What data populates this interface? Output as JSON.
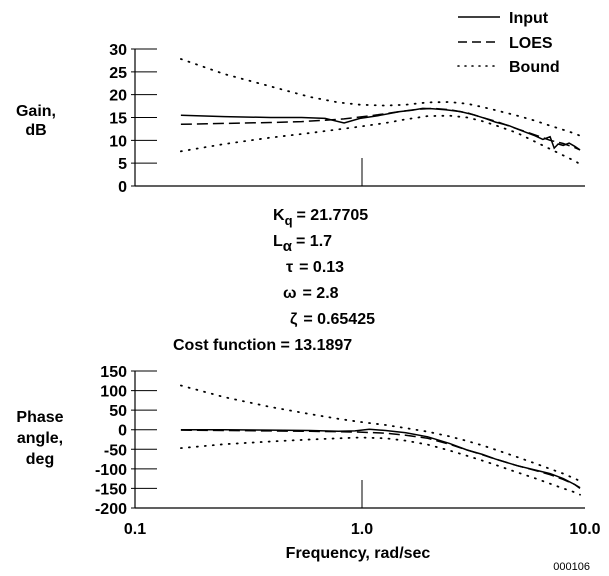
{
  "chart_data": [
    {
      "type": "line",
      "title": "",
      "xlabel": "Frequency, rad/sec",
      "ylabel_lines": [
        "Gain,",
        "dB"
      ],
      "xscale": "log",
      "xlim": [
        0.1,
        10.0
      ],
      "ylim": [
        0,
        30
      ],
      "yticks": [
        "0",
        "5",
        "10",
        "15",
        "20",
        "25",
        "30"
      ],
      "legend": {
        "position": "top-right",
        "entries": [
          "Input",
          "LOES",
          "Bound"
        ]
      },
      "series": [
        {
          "name": "Input",
          "style": "solid",
          "x": [
            0.16,
            0.25,
            0.4,
            0.55,
            0.7,
            0.85,
            1.0,
            1.2,
            1.5,
            1.7,
            1.9,
            2.1,
            2.4,
            2.8,
            3.2,
            3.6,
            4.0,
            4.6,
            5.3,
            6.0,
            6.5,
            7.0,
            7.3,
            7.6,
            8.0,
            8.5,
            9.0,
            9.5
          ],
          "y": [
            15.5,
            15.2,
            15.0,
            15.0,
            14.8,
            13.8,
            14.8,
            15.4,
            16.3,
            16.6,
            17.0,
            16.9,
            16.7,
            16.3,
            15.6,
            14.8,
            14.0,
            13.2,
            12.0,
            11.0,
            10.2,
            10.8,
            8.3,
            9.2,
            8.9,
            9.4,
            8.7,
            7.9
          ]
        },
        {
          "name": "LOES",
          "style": "dashed",
          "x": [
            0.16,
            0.25,
            0.4,
            0.55,
            0.7,
            0.85,
            1.0,
            1.2,
            1.5,
            1.8,
            2.1,
            2.5,
            3.0,
            3.5,
            4.0,
            5.0,
            6.0,
            7.0,
            8.0,
            9.0,
            9.5
          ],
          "y": [
            13.5,
            13.7,
            13.9,
            14.1,
            14.4,
            14.7,
            15.1,
            15.6,
            16.3,
            16.8,
            17.0,
            16.7,
            16.0,
            15.0,
            14.2,
            12.5,
            11.2,
            10.0,
            9.3,
            8.4,
            7.9
          ]
        },
        {
          "name": "Bound",
          "style": "dotted",
          "x": [
            0.16,
            0.25,
            0.4,
            0.6,
            0.8,
            1.0,
            1.3,
            1.6,
            2.0,
            2.5,
            3.0,
            3.5,
            4.0,
            5.0,
            6.0,
            7.0,
            8.0,
            9.0,
            9.5
          ],
          "y": [
            27.8,
            24.5,
            21.8,
            19.5,
            18.3,
            17.8,
            17.6,
            17.8,
            18.3,
            18.4,
            18.0,
            17.3,
            16.6,
            15.4,
            14.3,
            13.2,
            12.3,
            11.5,
            11.0
          ]
        },
        {
          "name": "Bound",
          "style": "dotted",
          "x": [
            0.16,
            0.25,
            0.4,
            0.6,
            0.8,
            1.0,
            1.3,
            1.6,
            2.0,
            2.5,
            3.0,
            3.5,
            4.0,
            5.0,
            6.0,
            7.0,
            8.0,
            9.0,
            9.5
          ],
          "y": [
            7.6,
            9.2,
            10.6,
            11.6,
            12.4,
            13.0,
            13.8,
            14.6,
            15.3,
            15.4,
            15.0,
            14.2,
            13.3,
            11.6,
            9.7,
            8.1,
            6.7,
            5.5,
            4.8
          ]
        }
      ]
    },
    {
      "type": "line",
      "title": "",
      "xlabel": "Frequency, rad/sec",
      "ylabel_lines": [
        "Phase",
        "angle,",
        "deg"
      ],
      "xscale": "log",
      "xlim": [
        0.1,
        10.0
      ],
      "ylim": [
        -200,
        150
      ],
      "yticks": [
        "-200",
        "-150",
        "-100",
        "-50",
        "0",
        "50",
        "100",
        "150"
      ],
      "xticks": [
        "0.1",
        "1.0",
        "10.0"
      ],
      "series": [
        {
          "name": "Input",
          "style": "solid",
          "x": [
            0.16,
            0.25,
            0.4,
            0.6,
            0.8,
            0.95,
            1.1,
            1.3,
            1.6,
            2.0,
            2.5,
            3.0,
            3.5,
            4.0,
            5.0,
            6.0,
            7.0,
            8.0,
            9.0,
            9.5
          ],
          "y": [
            0,
            0,
            -1,
            -2,
            -4,
            -3,
            1,
            -2,
            -8,
            -18,
            -35,
            -52,
            -63,
            -75,
            -92,
            -103,
            -112,
            -125,
            -140,
            -150
          ]
        },
        {
          "name": "LOES",
          "style": "dashed",
          "x": [
            0.16,
            0.25,
            0.4,
            0.6,
            0.8,
            1.0,
            1.3,
            1.6,
            2.0,
            2.5,
            3.0,
            3.5,
            4.0,
            5.0,
            6.0,
            7.0,
            8.0,
            9.0,
            9.5
          ],
          "y": [
            -1,
            -2,
            -3,
            -4,
            -5,
            -6,
            -9,
            -14,
            -22,
            -37,
            -52,
            -64,
            -75,
            -92,
            -104,
            -115,
            -127,
            -140,
            -148
          ]
        },
        {
          "name": "Bound",
          "style": "dotted",
          "x": [
            0.16,
            0.25,
            0.4,
            0.6,
            0.8,
            1.0,
            1.3,
            1.6,
            2.0,
            2.5,
            3.0,
            3.5,
            4.0,
            5.0,
            6.0,
            7.0,
            8.0,
            9.0,
            9.5
          ],
          "y": [
            113,
            83,
            58,
            40,
            28,
            20,
            12,
            4,
            -5,
            -17,
            -29,
            -40,
            -51,
            -70,
            -86,
            -100,
            -112,
            -125,
            -131
          ]
        },
        {
          "name": "Bound",
          "style": "dotted",
          "x": [
            0.16,
            0.25,
            0.4,
            0.6,
            0.8,
            1.0,
            1.3,
            1.6,
            2.0,
            2.5,
            3.0,
            3.5,
            4.0,
            5.0,
            6.0,
            7.0,
            8.0,
            9.0,
            9.5
          ],
          "y": [
            -47,
            -37,
            -30,
            -25,
            -22,
            -20,
            -22,
            -28,
            -38,
            -53,
            -67,
            -79,
            -90,
            -109,
            -124,
            -138,
            -150,
            -160,
            -166
          ]
        }
      ]
    }
  ],
  "parameters": [
    {
      "sym": "K",
      "sub": "q",
      "value": "= 21.7705"
    },
    {
      "sym": "L",
      "sub": "α",
      "value": "= 1.7"
    },
    {
      "sym": "τ",
      "sub": "",
      "value": "= 0.13"
    },
    {
      "sym": "ω",
      "sub": "",
      "value": "= 2.8"
    },
    {
      "sym": "ζ",
      "sub": "",
      "value": "= 0.65425"
    }
  ],
  "cost_function": "Cost function = 13.1897",
  "figure_id": "000106"
}
